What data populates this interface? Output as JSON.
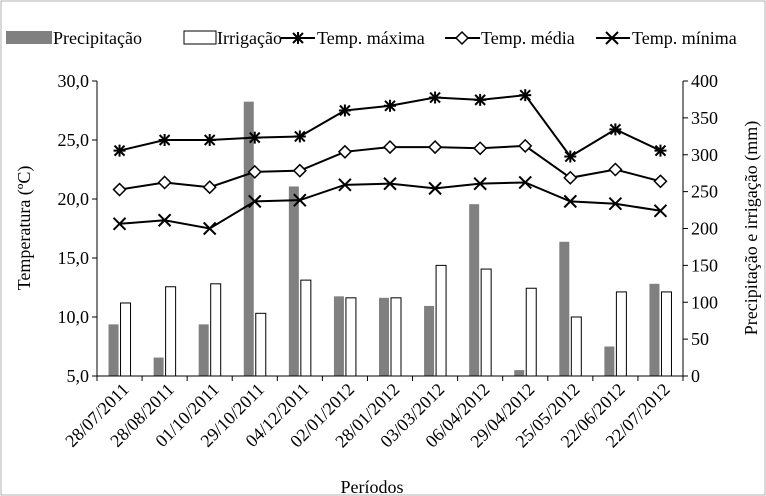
{
  "chart_data": {
    "type": "bar",
    "title": "",
    "xlabel": "Períodos",
    "ylabel": "Temperatura (ºC)",
    "y2label": "Precipitação e irrigação (mm)",
    "ylim": [
      5,
      30
    ],
    "y2lim": [
      0,
      400
    ],
    "y_ticks": [
      "5,0",
      "10,0",
      "15,0",
      "20,0",
      "25,0",
      "30,0"
    ],
    "y_tick_values": [
      5,
      10,
      15,
      20,
      25,
      30
    ],
    "y2_ticks": [
      "0",
      "50",
      "100",
      "150",
      "200",
      "250",
      "300",
      "350",
      "400"
    ],
    "y2_tick_values": [
      0,
      50,
      100,
      150,
      200,
      250,
      300,
      350,
      400
    ],
    "grid": false,
    "legend_position": "top",
    "categories": [
      "28/07/2011",
      "28/08/2011",
      "01/10/2011",
      "29/10/2011",
      "04/12/2011",
      "02/01/2012",
      "28/01/2012",
      "03/03/2012",
      "06/04/2012",
      "29/04/2012",
      "25/05/2012",
      "22/06/2012",
      "22/07/2012"
    ],
    "bar_series": [
      {
        "name": "Precipitação",
        "axis": "right",
        "color": "#808080",
        "values": [
          70,
          25,
          70,
          372,
          257,
          108,
          106,
          95,
          233,
          8,
          182,
          40,
          125
        ]
      },
      {
        "name": "Irrigação",
        "axis": "right",
        "color": "#ffffff",
        "values": [
          99,
          121,
          125,
          85,
          130,
          106,
          106,
          150,
          145,
          119,
          80,
          114,
          114
        ]
      }
    ],
    "line_series": [
      {
        "name": "Temp. máxima",
        "axis": "left",
        "marker": "asterisk",
        "values": [
          24.1,
          25.0,
          25.0,
          25.2,
          25.3,
          27.5,
          27.9,
          28.6,
          28.4,
          28.8,
          23.6,
          25.9,
          24.1
        ]
      },
      {
        "name": "Temp. média",
        "axis": "left",
        "marker": "diamond",
        "values": [
          20.8,
          21.4,
          21.0,
          22.3,
          22.4,
          24.0,
          24.4,
          24.4,
          24.3,
          24.5,
          21.8,
          22.5,
          21.5
        ]
      },
      {
        "name": "Temp. mínima",
        "axis": "left",
        "marker": "cross",
        "values": [
          17.9,
          18.2,
          17.5,
          19.8,
          19.9,
          21.2,
          21.3,
          20.9,
          21.3,
          21.4,
          19.8,
          19.6,
          19.0
        ]
      }
    ]
  }
}
